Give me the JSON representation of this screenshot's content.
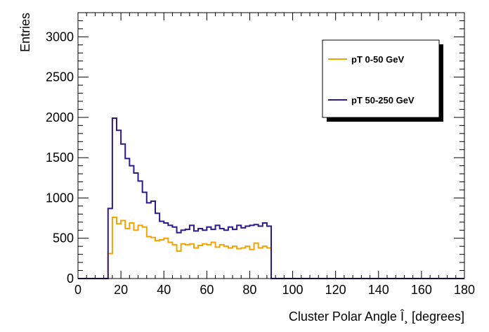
{
  "chart_data": {
    "type": "histogram",
    "xlabel": "Cluster Polar Angle Î¸ [degrees]",
    "ylabel": "Entries",
    "xlim": [
      0,
      180
    ],
    "ylim": [
      0,
      3300
    ],
    "x_tick_labels": [
      "0",
      "20",
      "40",
      "60",
      "80",
      "100",
      "120",
      "140",
      "160",
      "180"
    ],
    "y_tick_labels": [
      "0",
      "500",
      "1000",
      "1500",
      "2000",
      "2500",
      "3000"
    ],
    "bin_width": 2,
    "bin_start": 14,
    "series": [
      {
        "name": "pT 0-50 GeV",
        "color": "#f5a300",
        "values": [
          310,
          760,
          680,
          720,
          620,
          690,
          600,
          660,
          640,
          520,
          510,
          470,
          480,
          500,
          450,
          420,
          340,
          430,
          420,
          430,
          380,
          410,
          430,
          420,
          450,
          390,
          420,
          400,
          380,
          400,
          370,
          380,
          400,
          360,
          440,
          380,
          400,
          380
        ]
      },
      {
        "name": "pT 50-250 GeV",
        "color": "#2b1a8c",
        "values": [
          870,
          1990,
          1840,
          1670,
          1490,
          1400,
          1310,
          1210,
          1070,
          940,
          960,
          810,
          710,
          690,
          660,
          640,
          570,
          600,
          610,
          660,
          590,
          620,
          600,
          640,
          610,
          660,
          620,
          600,
          640,
          610,
          660,
          630,
          650,
          660,
          670,
          650,
          690,
          650
        ]
      }
    ]
  }
}
